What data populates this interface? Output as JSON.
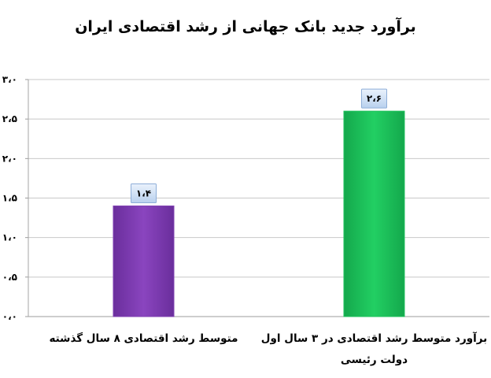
{
  "chart_data": {
    "type": "bar",
    "title": "برآورد جدید بانک جهانی از رشد اقتصادی ایران",
    "xlabel": "",
    "ylabel": "",
    "ylim": [
      0,
      3
    ],
    "y_ticks": [
      0,
      0.5,
      1,
      1.5,
      2,
      2.5,
      3
    ],
    "y_tick_labels": [
      "۰،۰",
      "۰،۵",
      "۱،۰",
      "۱،۵",
      "۲،۰",
      "۲،۵",
      "۳،۰"
    ],
    "grid": true,
    "legend": "none",
    "categories": [
      [
        "متوسط رشد اقتصادی ۸ سال گذشته"
      ],
      [
        "برآورد متوسط رشد اقتصادی در ۳ سال اول",
        "دولت رئیسی"
      ]
    ],
    "values": [
      1.4,
      2.6
    ],
    "data_labels": [
      "۱،۴",
      "۲،۶"
    ],
    "colors": [
      "#7f3fb2",
      "#1fc25c"
    ]
  }
}
